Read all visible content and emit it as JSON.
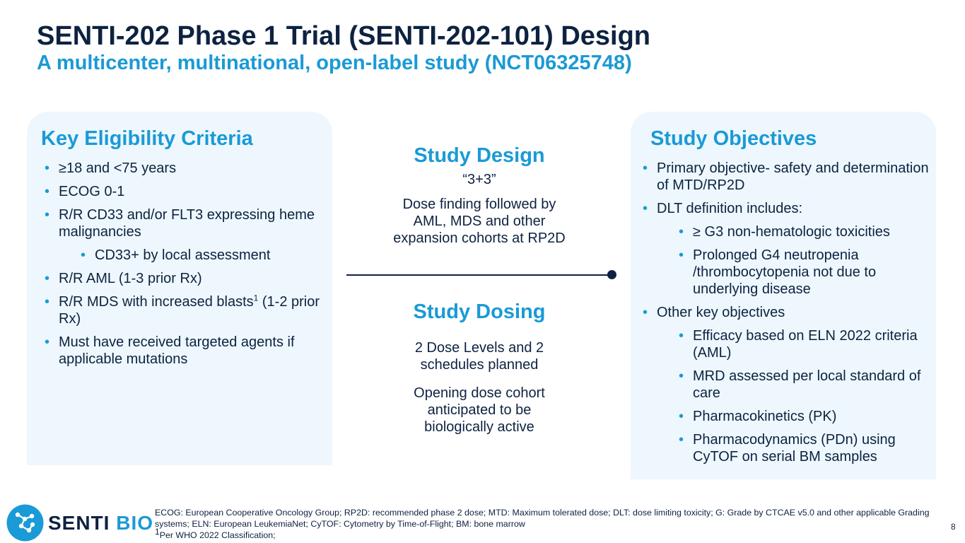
{
  "header": {
    "title": "SENTI-202 Phase 1 Trial (SENTI-202-101) Design",
    "subtitle": "A multicenter, multinational, open-label study (NCT06325748)"
  },
  "eligibility": {
    "heading": "Key Eligibility Criteria",
    "items": [
      {
        "text": "≥18 and <75 years"
      },
      {
        "text": "ECOG 0-1"
      },
      {
        "text": "R/R CD33 and/or FLT3 expressing heme malignancies"
      },
      {
        "text": "CD33+ by local assessment"
      },
      {
        "text": "R/R AML (1-3 prior Rx)"
      },
      {
        "text_before": "R/R MDS with increased blasts",
        "superscript": "1",
        "text_after": " (1-2 prior Rx)"
      },
      {
        "text": "Must have received targeted agents if applicable mutations"
      }
    ]
  },
  "design": {
    "heading": "Study Design",
    "scheme": "“3+3”",
    "description": "Dose finding followed by AML, MDS and other expansion cohorts at RP2D"
  },
  "dosing": {
    "heading": "Study Dosing",
    "line1": "2 Dose Levels and 2 schedules planned",
    "line2": "Opening dose cohort anticipated to be biologically active"
  },
  "objectives": {
    "heading": "Study Objectives",
    "items": [
      "Primary objective- safety and determination of MTD/RP2D",
      "DLT definition includes:",
      "≥ G3 non-hematologic toxicities",
      "Prolonged G4 neutropenia /thrombocytopenia not due to underlying disease",
      "Other key objectives",
      "Efficacy based on ELN 2022 criteria (AML)",
      "MRD assessed per local standard of care",
      "Pharmacokinetics (PK)",
      "Pharmacodynamics (PDn) using CyTOF on serial BM samples"
    ]
  },
  "footer": {
    "logo_word1": "SENTI",
    "logo_word2": "BIO",
    "footnote_line1": "ECOG: European Cooperative Oncology Group; RP2D: recommended phase 2 dose; MTD: Maximum tolerated dose; DLT: dose limiting toxicity; G: Grade by CTCAE v5.0 and other applicable Grading systems; ELN: European LeukemiaNet; CyTOF: Cytometry by Time-of-Flight; BM: bone marrow",
    "footnote_sup": "1",
    "footnote_line2": "Per WHO 2022 Classification;",
    "page_number": "8"
  },
  "colors": {
    "navy": "#0d2240",
    "accent_blue": "#1a9ad6",
    "panel_bg": "#eef7fd"
  }
}
